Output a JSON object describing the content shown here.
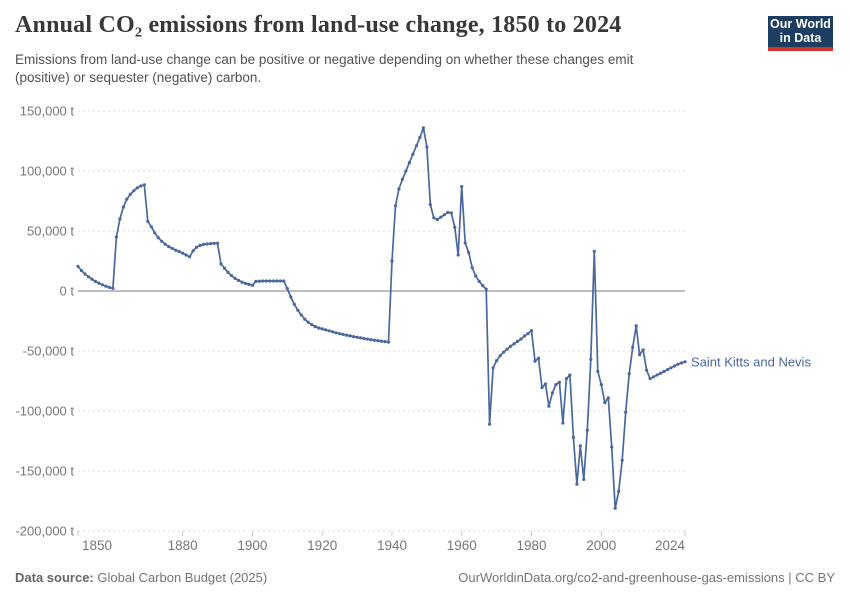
{
  "header": {
    "title": "Annual CO₂ emissions from land-use change, 1850 to 2024",
    "subtitle_line1": "Emissions from land-use change can be positive or negative depending on whether these changes emit",
    "subtitle_line2": "(positive) or sequester (negative) carbon."
  },
  "logo": {
    "line1": "Our World",
    "line2": "in Data",
    "bg_color": "#1d3d63",
    "bar_color": "#cf352e"
  },
  "entity_label": "Saint Kitts and Nevis",
  "footer": {
    "source_label": "Data source:",
    "source_text": " Global Carbon Budget (2025)",
    "right_text": "OurWorldinData.org/co2-and-greenhouse-gas-emissions | CC BY"
  },
  "colors": {
    "line": "#4a689e",
    "grid": "#dcdcdc",
    "zero_line": "#a8a8a8",
    "tick_mark": "#c8c8c8",
    "axis_text": "#787878"
  },
  "chart_data": {
    "type": "line",
    "title": "Annual CO₂ emissions from land-use change, 1850 to 2024",
    "xlabel": "",
    "ylabel": "",
    "unit": "t",
    "xlim": [
      1850,
      2024
    ],
    "ylim": [
      -200000,
      150000
    ],
    "grid": true,
    "legend_position": "end-of-line-label",
    "x_start": 1850,
    "y_ticks": [
      {
        "value": 150000,
        "label": "150,000 t"
      },
      {
        "value": 100000,
        "label": "100,000 t"
      },
      {
        "value": 50000,
        "label": "50,000 t"
      },
      {
        "value": 0,
        "label": "0 t"
      },
      {
        "value": -50000,
        "label": "-50,000 t"
      },
      {
        "value": -100000,
        "label": "-100,000 t"
      },
      {
        "value": -150000,
        "label": "-150,000 t"
      },
      {
        "value": -200000,
        "label": "-200,000 t"
      }
    ],
    "x_ticks": [
      {
        "value": 1850,
        "label": "1850"
      },
      {
        "value": 1880,
        "label": "1880"
      },
      {
        "value": 1900,
        "label": "1900"
      },
      {
        "value": 1920,
        "label": "1920"
      },
      {
        "value": 1940,
        "label": "1940"
      },
      {
        "value": 1960,
        "label": "1960"
      },
      {
        "value": 1980,
        "label": "1980"
      },
      {
        "value": 2000,
        "label": "2000"
      },
      {
        "value": 2024,
        "label": "2024"
      }
    ],
    "series": [
      {
        "name": "Saint Kitts and Nevis",
        "color": "#4a689e",
        "values": [
          20500,
          17000,
          14200,
          11800,
          9800,
          8000,
          6500,
          5200,
          4000,
          3000,
          2200,
          45000,
          60000,
          70000,
          76500,
          80500,
          83500,
          86000,
          87500,
          88500,
          58000,
          53500,
          48500,
          44500,
          41500,
          39000,
          37000,
          35500,
          34000,
          32800,
          31500,
          30000,
          28500,
          33500,
          36500,
          38000,
          38800,
          39200,
          39500,
          39700,
          39800,
          22500,
          19000,
          15500,
          12800,
          10500,
          8800,
          7400,
          6300,
          5500,
          4800,
          8000,
          8200,
          8300,
          8300,
          8300,
          8300,
          8300,
          8300,
          8300,
          2000,
          -5000,
          -11000,
          -16000,
          -20000,
          -23500,
          -26000,
          -28000,
          -29700,
          -30800,
          -31600,
          -32400,
          -33200,
          -34000,
          -34800,
          -35500,
          -36200,
          -36800,
          -37400,
          -38000,
          -38600,
          -39100,
          -39600,
          -40100,
          -40600,
          -41000,
          -41400,
          -41800,
          -42200,
          -42600,
          25000,
          71000,
          85000,
          93000,
          100000,
          107000,
          114000,
          121000,
          128000,
          136000,
          120000,
          72000,
          61000,
          59500,
          61500,
          63500,
          65500,
          65000,
          53000,
          30000,
          87000,
          40000,
          32000,
          19500,
          12500,
          8000,
          4500,
          1500,
          -111000,
          -64000,
          -58000,
          -54000,
          -51000,
          -48500,
          -46000,
          -44000,
          -42000,
          -40000,
          -37500,
          -35500,
          -33000,
          -58500,
          -56000,
          -80500,
          -77500,
          -96000,
          -85000,
          -78000,
          -76000,
          -110000,
          -73000,
          -70000,
          -122000,
          -161000,
          -129000,
          -157000,
          -116000,
          -57000,
          33000,
          -67000,
          -78000,
          -93000,
          -89000,
          -130000,
          -181000,
          -167000,
          -141000,
          -101000,
          -69000,
          -47000,
          -29000,
          -53000,
          -49000,
          -66000,
          -73000,
          -71500,
          -70000,
          -68500,
          -67000,
          -65500,
          -64000,
          -62500,
          -61000,
          -60000,
          -59000
        ]
      }
    ]
  }
}
